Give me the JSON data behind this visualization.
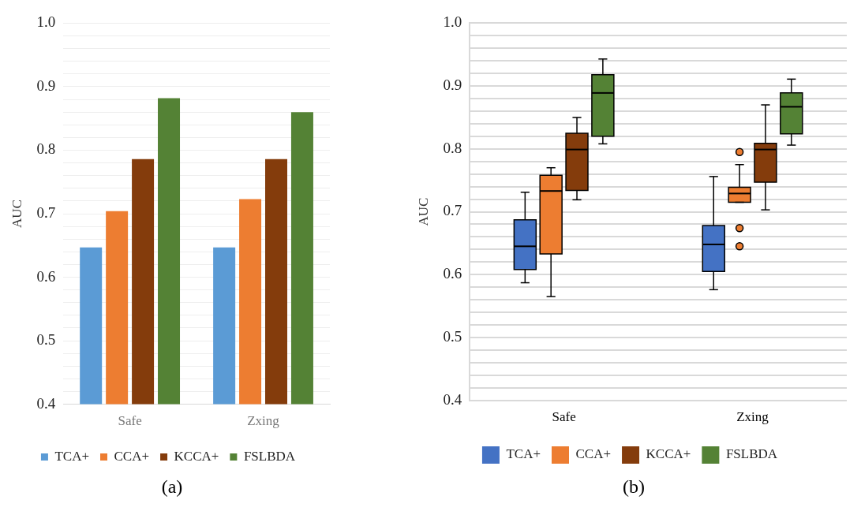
{
  "chart_data": [
    {
      "type": "bar",
      "ylabel": "AUC",
      "categories": [
        "Safe",
        "Zxing"
      ],
      "series": [
        {
          "name": "TCA+",
          "color": "#5b9bd5",
          "values": [
            0.647,
            0.647
          ]
        },
        {
          "name": "CCA+",
          "color": "#ed7d31",
          "values": [
            0.704,
            0.723
          ]
        },
        {
          "name": "KCCA+",
          "color": "#843c0c",
          "values": [
            0.786,
            0.786
          ]
        },
        {
          "name": "FSLBDA",
          "color": "#548235",
          "values": [
            0.882,
            0.86
          ]
        }
      ],
      "ylim": [
        0.4,
        1.0
      ],
      "yticks": [
        0.4,
        {
          "value": 0.42,
          "label": null
        },
        {
          "value": 0.44,
          "label": null
        },
        {
          "value": 0.46,
          "label": null
        },
        {
          "value": 0.48,
          "label": null
        },
        0.5,
        {
          "value": 0.52,
          "label": null
        },
        {
          "value": 0.54,
          "label": null
        },
        {
          "value": 0.56,
          "label": null
        },
        {
          "value": 0.58,
          "label": null
        },
        0.6,
        {
          "value": 0.62,
          "label": null
        },
        {
          "value": 0.64,
          "label": null
        },
        {
          "value": 0.66,
          "label": null
        },
        {
          "value": 0.68,
          "label": null
        },
        0.7,
        {
          "value": 0.72,
          "label": null
        },
        {
          "value": 0.74,
          "label": null
        },
        {
          "value": 0.76,
          "label": null
        },
        {
          "value": 0.78,
          "label": null
        },
        0.8,
        {
          "value": 0.82,
          "label": null
        },
        {
          "value": 0.84,
          "label": null
        },
        {
          "value": 0.86,
          "label": null
        },
        {
          "value": 0.88,
          "label": null
        },
        0.9,
        {
          "value": 0.92,
          "label": null
        },
        {
          "value": 0.94,
          "label": null
        },
        {
          "value": 0.96,
          "label": null
        },
        {
          "value": 0.98,
          "label": null
        },
        {
          "value": 1.0,
          "label": "1.0"
        }
      ],
      "grid": "y",
      "legend": "bottom",
      "annotations": [
        "(a)"
      ]
    },
    {
      "type": "box",
      "ylabel": "AUC",
      "categories": [
        "Safe",
        "Zxing"
      ],
      "series": [
        {
          "name": "TCA+",
          "color": "#4472c4",
          "boxes": [
            {
              "low": 0.587,
              "q1": 0.608,
              "median": 0.645,
              "q3": 0.687,
              "high": 0.731
            },
            {
              "low": 0.576,
              "q1": 0.605,
              "median": 0.648,
              "q3": 0.678,
              "high": 0.756
            }
          ]
        },
        {
          "name": "CCA+",
          "color": "#ed7d31",
          "boxes": [
            {
              "low": 0.565,
              "q1": 0.633,
              "median": 0.733,
              "q3": 0.758,
              "high": 0.77
            },
            {
              "low": 0.715,
              "q1": 0.715,
              "median": 0.729,
              "q3": 0.739,
              "high": 0.775,
              "outliers": [
                0.795,
                0.674,
                0.645
              ]
            }
          ]
        },
        {
          "name": "KCCA+",
          "color": "#843c0c",
          "boxes": [
            {
              "low": 0.719,
              "q1": 0.734,
              "median": 0.799,
              "q3": 0.825,
              "high": 0.85
            },
            {
              "low": 0.703,
              "q1": 0.747,
              "median": 0.799,
              "q3": 0.809,
              "high": 0.87
            }
          ]
        },
        {
          "name": "FSLBDA",
          "color": "#548235",
          "boxes": [
            {
              "low": 0.808,
              "q1": 0.82,
              "median": 0.889,
              "q3": 0.918,
              "high": 0.943
            },
            {
              "low": 0.806,
              "q1": 0.824,
              "median": 0.867,
              "q3": 0.889,
              "high": 0.911
            }
          ]
        }
      ],
      "ylim": [
        0.4,
        1.0
      ],
      "yticks": [
        0.4,
        {
          "value": 0.42,
          "label": null
        },
        {
          "value": 0.44,
          "label": null
        },
        {
          "value": 0.46,
          "label": null
        },
        {
          "value": 0.48,
          "label": null
        },
        0.5,
        {
          "value": 0.52,
          "label": null
        },
        {
          "value": 0.54,
          "label": null
        },
        {
          "value": 0.56,
          "label": null
        },
        {
          "value": 0.58,
          "label": null
        },
        0.6,
        {
          "value": 0.62,
          "label": null
        },
        {
          "value": 0.64,
          "label": null
        },
        {
          "value": 0.66,
          "label": null
        },
        {
          "value": 0.68,
          "label": null
        },
        0.7,
        {
          "value": 0.72,
          "label": null
        },
        {
          "value": 0.74,
          "label": null
        },
        {
          "value": 0.76,
          "label": null
        },
        {
          "value": 0.78,
          "label": null
        },
        0.8,
        {
          "value": 0.82,
          "label": null
        },
        {
          "value": 0.84,
          "label": null
        },
        {
          "value": 0.86,
          "label": null
        },
        {
          "value": 0.88,
          "label": null
        },
        0.9,
        {
          "value": 0.92,
          "label": null
        },
        {
          "value": 0.94,
          "label": null
        },
        {
          "value": 0.96,
          "label": null
        },
        {
          "value": 0.98,
          "label": null
        },
        {
          "value": 1.0,
          "label": "1.0"
        }
      ],
      "grid": "y",
      "legend": "bottom",
      "annotations": [
        "(b)"
      ]
    }
  ]
}
